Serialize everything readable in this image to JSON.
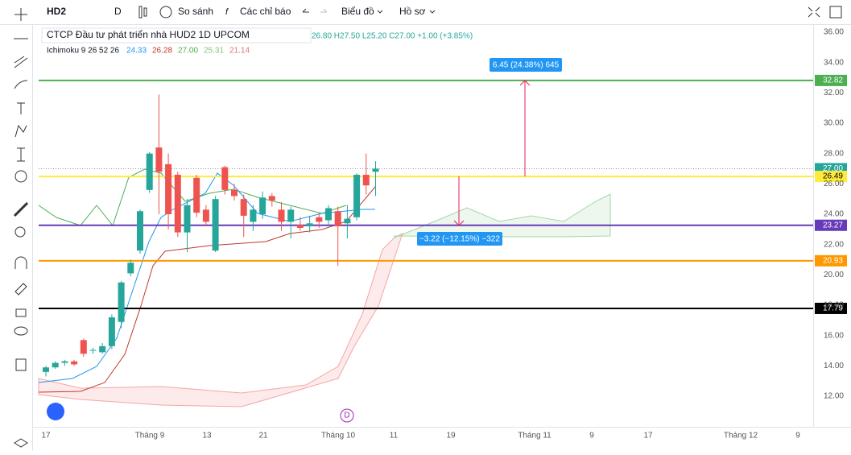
{
  "toolbar": {
    "symbol": "HD2",
    "interval": "D",
    "compare": "So sánh",
    "indicators": "Các chỉ báo",
    "chart": "Biểu đồ",
    "profile": "Hồ sơ"
  },
  "legend": {
    "name": "CTCP Đầu tư phát triển nhà HUD2  1D  UPCOM",
    "ohlc": "26.80 H27.50 L25.20 C27.00 +1.00 (+3.85%)",
    "indicator": "Ichimoku 9 26 52 26",
    "indicator_values": [
      "24.33",
      "26.28",
      "27.00",
      "25.31",
      "21.14"
    ]
  },
  "price_axis": [
    "36.00",
    "34.00",
    "32.00",
    "30.00",
    "28.00",
    "26.00",
    "24.00",
    "22.00",
    "20.00",
    "18.00",
    "16.00",
    "14.00",
    "12.00"
  ],
  "date_axis": [
    "17",
    "Tháng 9",
    "13",
    "21",
    "Tháng 10",
    "11",
    "19",
    "Tháng 11",
    "9",
    "17",
    "Tháng 12",
    "9"
  ],
  "levels": [
    {
      "label": "32.82",
      "color": "#4caf50"
    },
    {
      "label": "27.00",
      "color": "#26a69a"
    },
    {
      "label": "26.49",
      "color": "#ffeb3b"
    },
    {
      "label": "23.27",
      "color": "#673ab7"
    },
    {
      "label": "20.93",
      "color": "#ff9800"
    },
    {
      "label": "17.79",
      "color": "#000000"
    }
  ],
  "annotations": [
    "6.45 (24.38%) 645",
    "−3.22 (−12.15%) −322"
  ],
  "marker": "D",
  "candles": [
    {
      "open": 13.6,
      "high": 14.0,
      "low": 13.3,
      "close": 13.9
    },
    {
      "open": 13.9,
      "high": 14.3,
      "low": 13.8,
      "close": 14.2
    },
    {
      "open": 14.2,
      "high": 14.4,
      "low": 14.0,
      "close": 14.3
    },
    {
      "open": 14.3,
      "high": 14.4,
      "low": 14.0,
      "close": 14.1
    },
    {
      "open": 15.7,
      "high": 15.8,
      "low": 14.6,
      "close": 14.8
    },
    {
      "open": 15.0,
      "high": 15.2,
      "low": 14.8,
      "close": 15.05
    },
    {
      "open": 14.9,
      "high": 15.5,
      "low": 14.8,
      "close": 15.3
    },
    {
      "open": 15.3,
      "high": 17.4,
      "low": 15.1,
      "close": 17.2
    },
    {
      "open": 16.9,
      "high": 19.6,
      "low": 16.5,
      "close": 19.5
    },
    {
      "open": 20.1,
      "high": 21.0,
      "low": 19.9,
      "close": 20.8
    },
    {
      "open": 21.6,
      "high": 24.3,
      "low": 21.4,
      "close": 24.2
    },
    {
      "open": 25.6,
      "high": 28.1,
      "low": 25.4,
      "close": 28.0
    },
    {
      "open": 28.4,
      "high": 31.9,
      "low": 24.0,
      "close": 26.8
    },
    {
      "open": 27.3,
      "high": 28.0,
      "low": 23.0,
      "close": 24.0
    },
    {
      "open": 26.6,
      "high": 26.8,
      "low": 22.5,
      "close": 22.8
    },
    {
      "open": 22.8,
      "high": 25.0,
      "low": 21.5,
      "close": 24.6
    },
    {
      "open": 26.4,
      "high": 26.6,
      "low": 23.8,
      "close": 24.1
    },
    {
      "open": 24.3,
      "high": 24.6,
      "low": 23.2,
      "close": 23.5
    },
    {
      "open": 21.6,
      "high": 25.2,
      "low": 21.5,
      "close": 25.0
    },
    {
      "open": 27.1,
      "high": 27.2,
      "low": 25.3,
      "close": 25.6
    },
    {
      "open": 25.6,
      "high": 26.0,
      "low": 24.9,
      "close": 25.2
    },
    {
      "open": 25.0,
      "high": 25.3,
      "low": 22.5,
      "close": 23.9
    },
    {
      "open": 23.5,
      "high": 24.6,
      "low": 22.9,
      "close": 24.3
    },
    {
      "open": 24.0,
      "high": 25.5,
      "low": 23.7,
      "close": 25.1
    },
    {
      "open": 25.2,
      "high": 25.4,
      "low": 24.5,
      "close": 24.9
    },
    {
      "open": 24.3,
      "high": 24.8,
      "low": 22.9,
      "close": 23.5
    },
    {
      "open": 23.5,
      "high": 24.5,
      "low": 22.4,
      "close": 24.3
    },
    {
      "open": 23.3,
      "high": 23.8,
      "low": 22.9,
      "close": 23.1
    },
    {
      "open": 23.2,
      "high": 23.9,
      "low": 22.8,
      "close": 23.4
    },
    {
      "open": 23.8,
      "high": 24.1,
      "low": 23.1,
      "close": 23.5
    },
    {
      "open": 23.6,
      "high": 24.6,
      "low": 23.2,
      "close": 24.4
    },
    {
      "open": 24.2,
      "high": 24.5,
      "low": 20.6,
      "close": 23.2
    },
    {
      "open": 23.4,
      "high": 24.6,
      "low": 22.4,
      "close": 23.7
    },
    {
      "open": 23.8,
      "high": 26.7,
      "low": 23.6,
      "close": 26.6
    },
    {
      "open": 26.6,
      "high": 28.0,
      "low": 25.3,
      "close": 25.9
    },
    {
      "open": 26.8,
      "high": 27.5,
      "low": 25.2,
      "close": 27.0
    }
  ]
}
